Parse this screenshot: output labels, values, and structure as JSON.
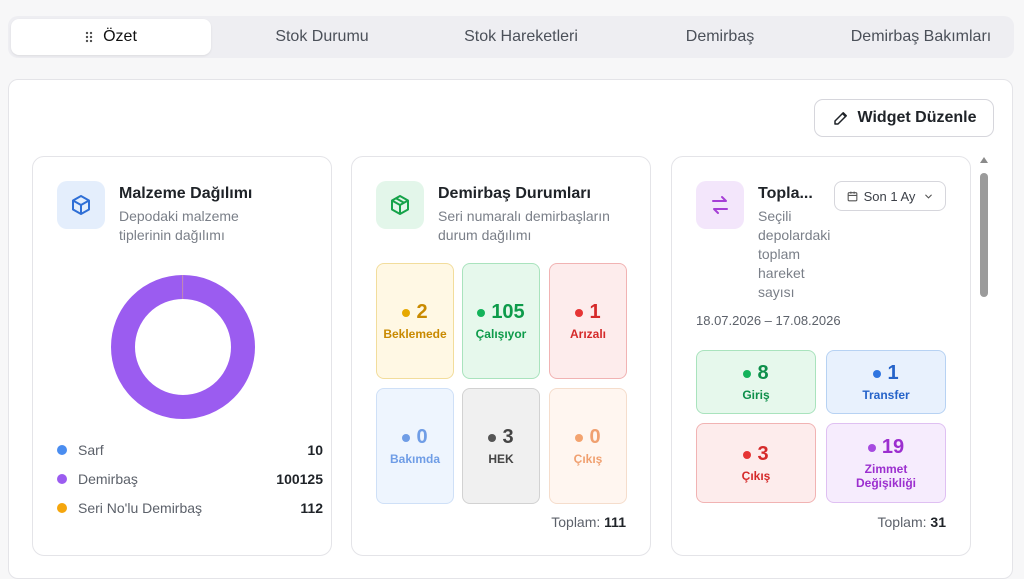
{
  "tabs": [
    {
      "label": "Özet",
      "active": true
    },
    {
      "label": "Stok Durumu"
    },
    {
      "label": "Stok Hareketleri"
    },
    {
      "label": "Demirbaş"
    },
    {
      "label": "Demirbaş Bakımları"
    }
  ],
  "widget_button": {
    "label": "Widget Düzenle",
    "icon": "pencil-icon"
  },
  "material_card": {
    "icon": "box-icon",
    "title": "Malzeme Dağılımı",
    "subtitle_line1": "Depodaki malzeme",
    "subtitle_line2": "tiplerinin dağılımı",
    "legend": [
      {
        "label": "Sarf",
        "value": "10",
        "color": "#4a8df0"
      },
      {
        "label": "Demirbaş",
        "value": "100125",
        "color": "#9b5cf0"
      },
      {
        "label": "Seri No'lu Demirbaş",
        "value": "112",
        "color": "#f5a60d"
      }
    ]
  },
  "asset_card": {
    "icon": "package-icon",
    "title": "Demirbaş Durumları",
    "subtitle_line1": "Seri numaralı demirbaşların",
    "subtitle_line2": "durum dağılımı",
    "stats": [
      {
        "value": "2",
        "label": "Beklemede",
        "color": "#c98a00",
        "dot": "#e6a800",
        "bg": "#fff8e4",
        "border": "#f2dd9c"
      },
      {
        "value": "105",
        "label": "Çalışıyor",
        "color": "#0d9b4a",
        "dot": "#13b35a",
        "bg": "#e6f8ec",
        "border": "#a9e3bd"
      },
      {
        "value": "1",
        "label": "Arızalı",
        "color": "#d52a2a",
        "dot": "#e63535",
        "bg": "#fdecec",
        "border": "#f1b3b3"
      },
      {
        "value": "0",
        "label": "Bakımda",
        "color": "#6f9de6",
        "dot": "#6f9de6",
        "bg": "#eef5fe",
        "border": "#cfe0f7"
      },
      {
        "value": "3",
        "label": "HEK",
        "color": "#444",
        "dot": "#555",
        "bg": "#f0f0f0",
        "border": "#d2d2d2"
      },
      {
        "value": "0",
        "label": "Çıkış",
        "color": "#f0a070",
        "dot": "#f3a36f",
        "bg": "#fff6f0",
        "border": "#f5ddcc"
      }
    ],
    "total_label": "Toplam:",
    "total_value": "111"
  },
  "movement_card": {
    "icon": "arrows-swap-icon",
    "title": "Topla...",
    "subtitle_lines": [
      "Seçili",
      "depolardaki",
      "toplam",
      "hareket",
      "sayısı"
    ],
    "period_label": "Son 1 Ay",
    "date_range": "18.07.2026 – 17.08.2026",
    "stats": [
      {
        "value": "8",
        "label_lines": [
          "Giriş"
        ],
        "color": "#0d8f4a",
        "dot": "#13b35a",
        "bg": "#e6f8ec",
        "border": "#a9e3bd"
      },
      {
        "value": "1",
        "label_lines": [
          "Transfer"
        ],
        "color": "#2563c9",
        "dot": "#2f75e0",
        "bg": "#e8f1fd",
        "border": "#b7d2f3"
      },
      {
        "value": "3",
        "label_lines": [
          "Çıkış"
        ],
        "color": "#d52a2a",
        "dot": "#e63535",
        "bg": "#fdecec",
        "border": "#f1b3b3"
      },
      {
        "value": "19",
        "label_lines": [
          "Zimmet",
          "Değişikliği"
        ],
        "color": "#9c2fcf",
        "dot": "#a64be0",
        "bg": "#f6ecfd",
        "border": "#dfc0f2"
      }
    ],
    "total_label": "Toplam:",
    "total_value": "31"
  },
  "chart_data": {
    "type": "pie",
    "categories": [
      "Sarf",
      "Demirbaş",
      "Seri No'lu Demirbaş"
    ],
    "values": [
      10,
      100125,
      112
    ],
    "colors": [
      "#4a8df0",
      "#9b5cf0",
      "#f5a60d"
    ]
  }
}
